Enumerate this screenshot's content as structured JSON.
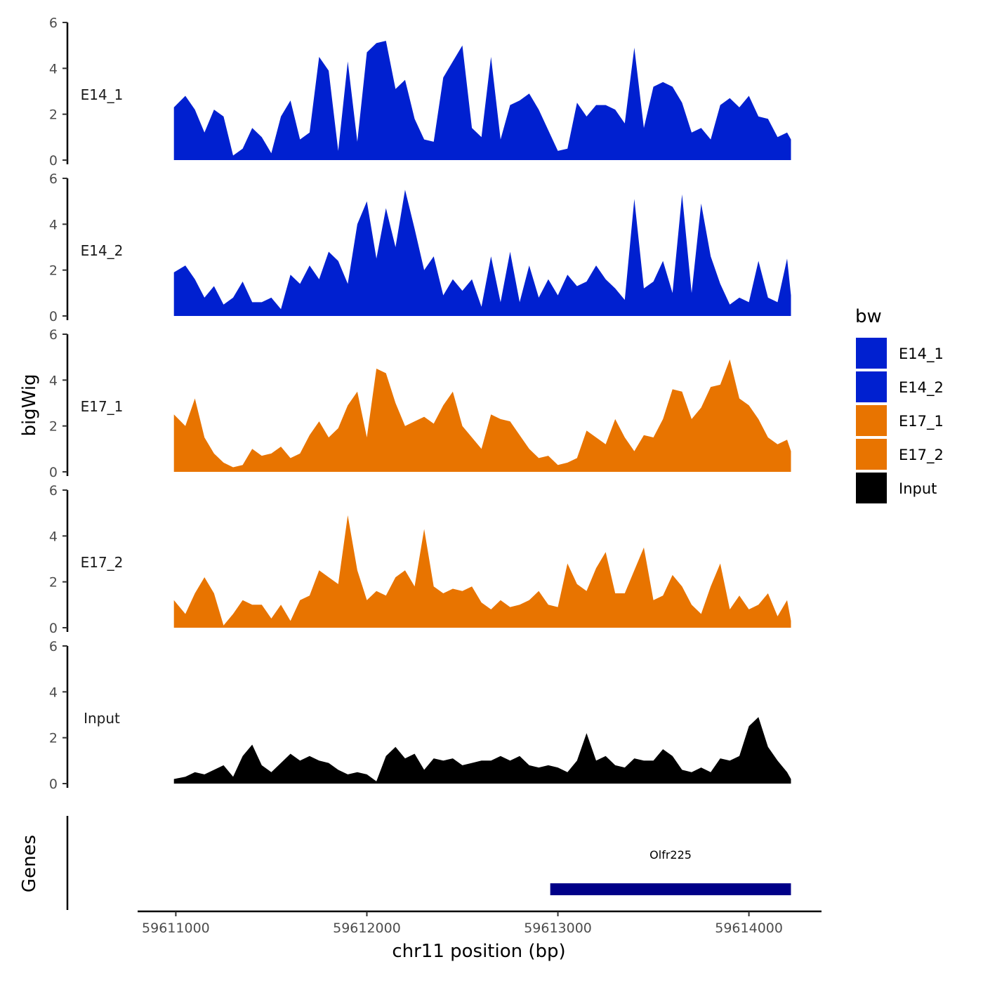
{
  "chart_data": {
    "type": "area",
    "ylabel": "bigWig",
    "xlabel": "chr11 position (bp)",
    "genes_label": "Genes",
    "legend_title": "bw",
    "xlim": [
      59610800,
      59614380
    ],
    "ylim": [
      0,
      6
    ],
    "x_ticks": [
      59611000,
      59612000,
      59613000,
      59614000
    ],
    "y_ticks": [
      0,
      2,
      4,
      6
    ],
    "colors": {
      "E14_1": "#0020d0",
      "E14_2": "#0020d0",
      "E17_1": "#e87400",
      "E17_2": "#e87400",
      "Input": "#000000",
      "gene": "#000088"
    },
    "legend": [
      "E14_1",
      "E14_2",
      "E17_1",
      "E17_2",
      "Input"
    ],
    "x": [
      59610990,
      59611050,
      59611100,
      59611150,
      59611200,
      59611250,
      59611300,
      59611350,
      59611400,
      59611450,
      59611500,
      59611550,
      59611600,
      59611650,
      59611700,
      59611750,
      59611800,
      59611850,
      59611900,
      59611950,
      59612000,
      59612050,
      59612100,
      59612150,
      59612200,
      59612250,
      59612300,
      59612350,
      59612400,
      59612450,
      59612500,
      59612550,
      59612600,
      59612650,
      59612700,
      59612750,
      59612800,
      59612850,
      59612900,
      59612950,
      59613000,
      59613050,
      59613100,
      59613150,
      59613200,
      59613250,
      59613300,
      59613350,
      59613400,
      59613450,
      59613500,
      59613550,
      59613600,
      59613650,
      59613700,
      59613750,
      59613800,
      59613850,
      59613900,
      59613950,
      59614000,
      59614050,
      59614100,
      59614150,
      59614200,
      59614220
    ],
    "series": [
      {
        "name": "E14_1",
        "values": [
          2.3,
          2.8,
          2.2,
          1.2,
          2.2,
          1.9,
          0.2,
          0.5,
          1.4,
          1.0,
          0.3,
          1.9,
          2.6,
          0.9,
          1.2,
          4.5,
          3.9,
          0.4,
          4.3,
          0.8,
          4.7,
          5.1,
          5.2,
          3.1,
          3.5,
          1.8,
          0.9,
          0.8,
          3.6,
          4.3,
          5.0,
          1.4,
          1.0,
          4.5,
          0.9,
          2.4,
          2.6,
          2.9,
          2.2,
          1.3,
          0.4,
          0.5,
          2.5,
          1.9,
          2.4,
          2.4,
          2.2,
          1.6,
          4.9,
          1.4,
          3.2,
          3.4,
          3.2,
          2.5,
          1.2,
          1.4,
          0.9,
          2.4,
          2.7,
          2.3,
          2.8,
          1.9,
          1.8,
          1.0,
          1.2,
          0.9
        ]
      },
      {
        "name": "E14_2",
        "values": [
          1.9,
          2.2,
          1.6,
          0.8,
          1.3,
          0.5,
          0.8,
          1.5,
          0.6,
          0.6,
          0.8,
          0.3,
          1.8,
          1.4,
          2.2,
          1.6,
          2.8,
          2.4,
          1.4,
          4.0,
          5.0,
          2.5,
          4.7,
          3.0,
          5.5,
          3.8,
          2.0,
          2.6,
          0.9,
          1.6,
          1.1,
          1.6,
          0.4,
          2.6,
          0.6,
          2.8,
          0.6,
          2.2,
          0.8,
          1.6,
          0.9,
          1.8,
          1.3,
          1.5,
          2.2,
          1.6,
          1.2,
          0.7,
          5.1,
          1.2,
          1.5,
          2.4,
          1.0,
          5.3,
          1.0,
          4.9,
          2.6,
          1.4,
          0.5,
          0.8,
          0.6,
          2.4,
          0.8,
          0.6,
          2.5,
          0.9
        ]
      },
      {
        "name": "E17_1",
        "values": [
          2.5,
          2.0,
          3.2,
          1.5,
          0.8,
          0.4,
          0.2,
          0.3,
          1.0,
          0.7,
          0.8,
          1.1,
          0.6,
          0.8,
          1.6,
          2.2,
          1.5,
          1.9,
          2.9,
          3.5,
          1.5,
          4.5,
          4.3,
          3.0,
          2.0,
          2.2,
          2.4,
          2.1,
          2.9,
          3.5,
          2.0,
          1.5,
          1.0,
          2.5,
          2.3,
          2.2,
          1.6,
          1.0,
          0.6,
          0.7,
          0.3,
          0.4,
          0.6,
          1.8,
          1.5,
          1.2,
          2.3,
          1.5,
          0.9,
          1.6,
          1.5,
          2.3,
          3.6,
          3.5,
          2.3,
          2.8,
          3.7,
          3.8,
          4.9,
          3.2,
          2.9,
          2.3,
          1.5,
          1.2,
          1.4,
          0.9
        ]
      },
      {
        "name": "E17_2",
        "values": [
          1.2,
          0.6,
          1.5,
          2.2,
          1.5,
          0.1,
          0.6,
          1.2,
          1.0,
          1.0,
          0.4,
          1.0,
          0.3,
          1.2,
          1.4,
          2.5,
          2.2,
          1.9,
          4.9,
          2.5,
          1.2,
          1.6,
          1.4,
          2.2,
          2.5,
          1.8,
          4.3,
          1.8,
          1.5,
          1.7,
          1.6,
          1.8,
          1.1,
          0.8,
          1.2,
          0.9,
          1.0,
          1.2,
          1.6,
          1.0,
          0.9,
          2.8,
          1.9,
          1.6,
          2.6,
          3.3,
          1.5,
          1.5,
          2.5,
          3.5,
          1.2,
          1.4,
          2.3,
          1.8,
          1.0,
          0.6,
          1.8,
          2.8,
          0.8,
          1.4,
          0.8,
          1.0,
          1.5,
          0.5,
          1.2,
          0.3
        ]
      },
      {
        "name": "Input",
        "values": [
          0.2,
          0.3,
          0.5,
          0.4,
          0.6,
          0.8,
          0.3,
          1.2,
          1.7,
          0.8,
          0.5,
          0.9,
          1.3,
          1.0,
          1.2,
          1.0,
          0.9,
          0.6,
          0.4,
          0.5,
          0.4,
          0.1,
          1.2,
          1.6,
          1.1,
          1.3,
          0.6,
          1.1,
          1.0,
          1.1,
          0.8,
          0.9,
          1.0,
          1.0,
          1.2,
          1.0,
          1.2,
          0.8,
          0.7,
          0.8,
          0.7,
          0.5,
          1.0,
          2.2,
          1.0,
          1.2,
          0.8,
          0.7,
          1.1,
          1.0,
          1.0,
          1.5,
          1.2,
          0.6,
          0.5,
          0.7,
          0.5,
          1.1,
          1.0,
          1.2,
          2.5,
          2.9,
          1.6,
          1.0,
          0.5,
          0.2
        ]
      }
    ],
    "genes": [
      {
        "name": "Olfr225",
        "start": 59612960,
        "end": 59614220
      }
    ]
  }
}
